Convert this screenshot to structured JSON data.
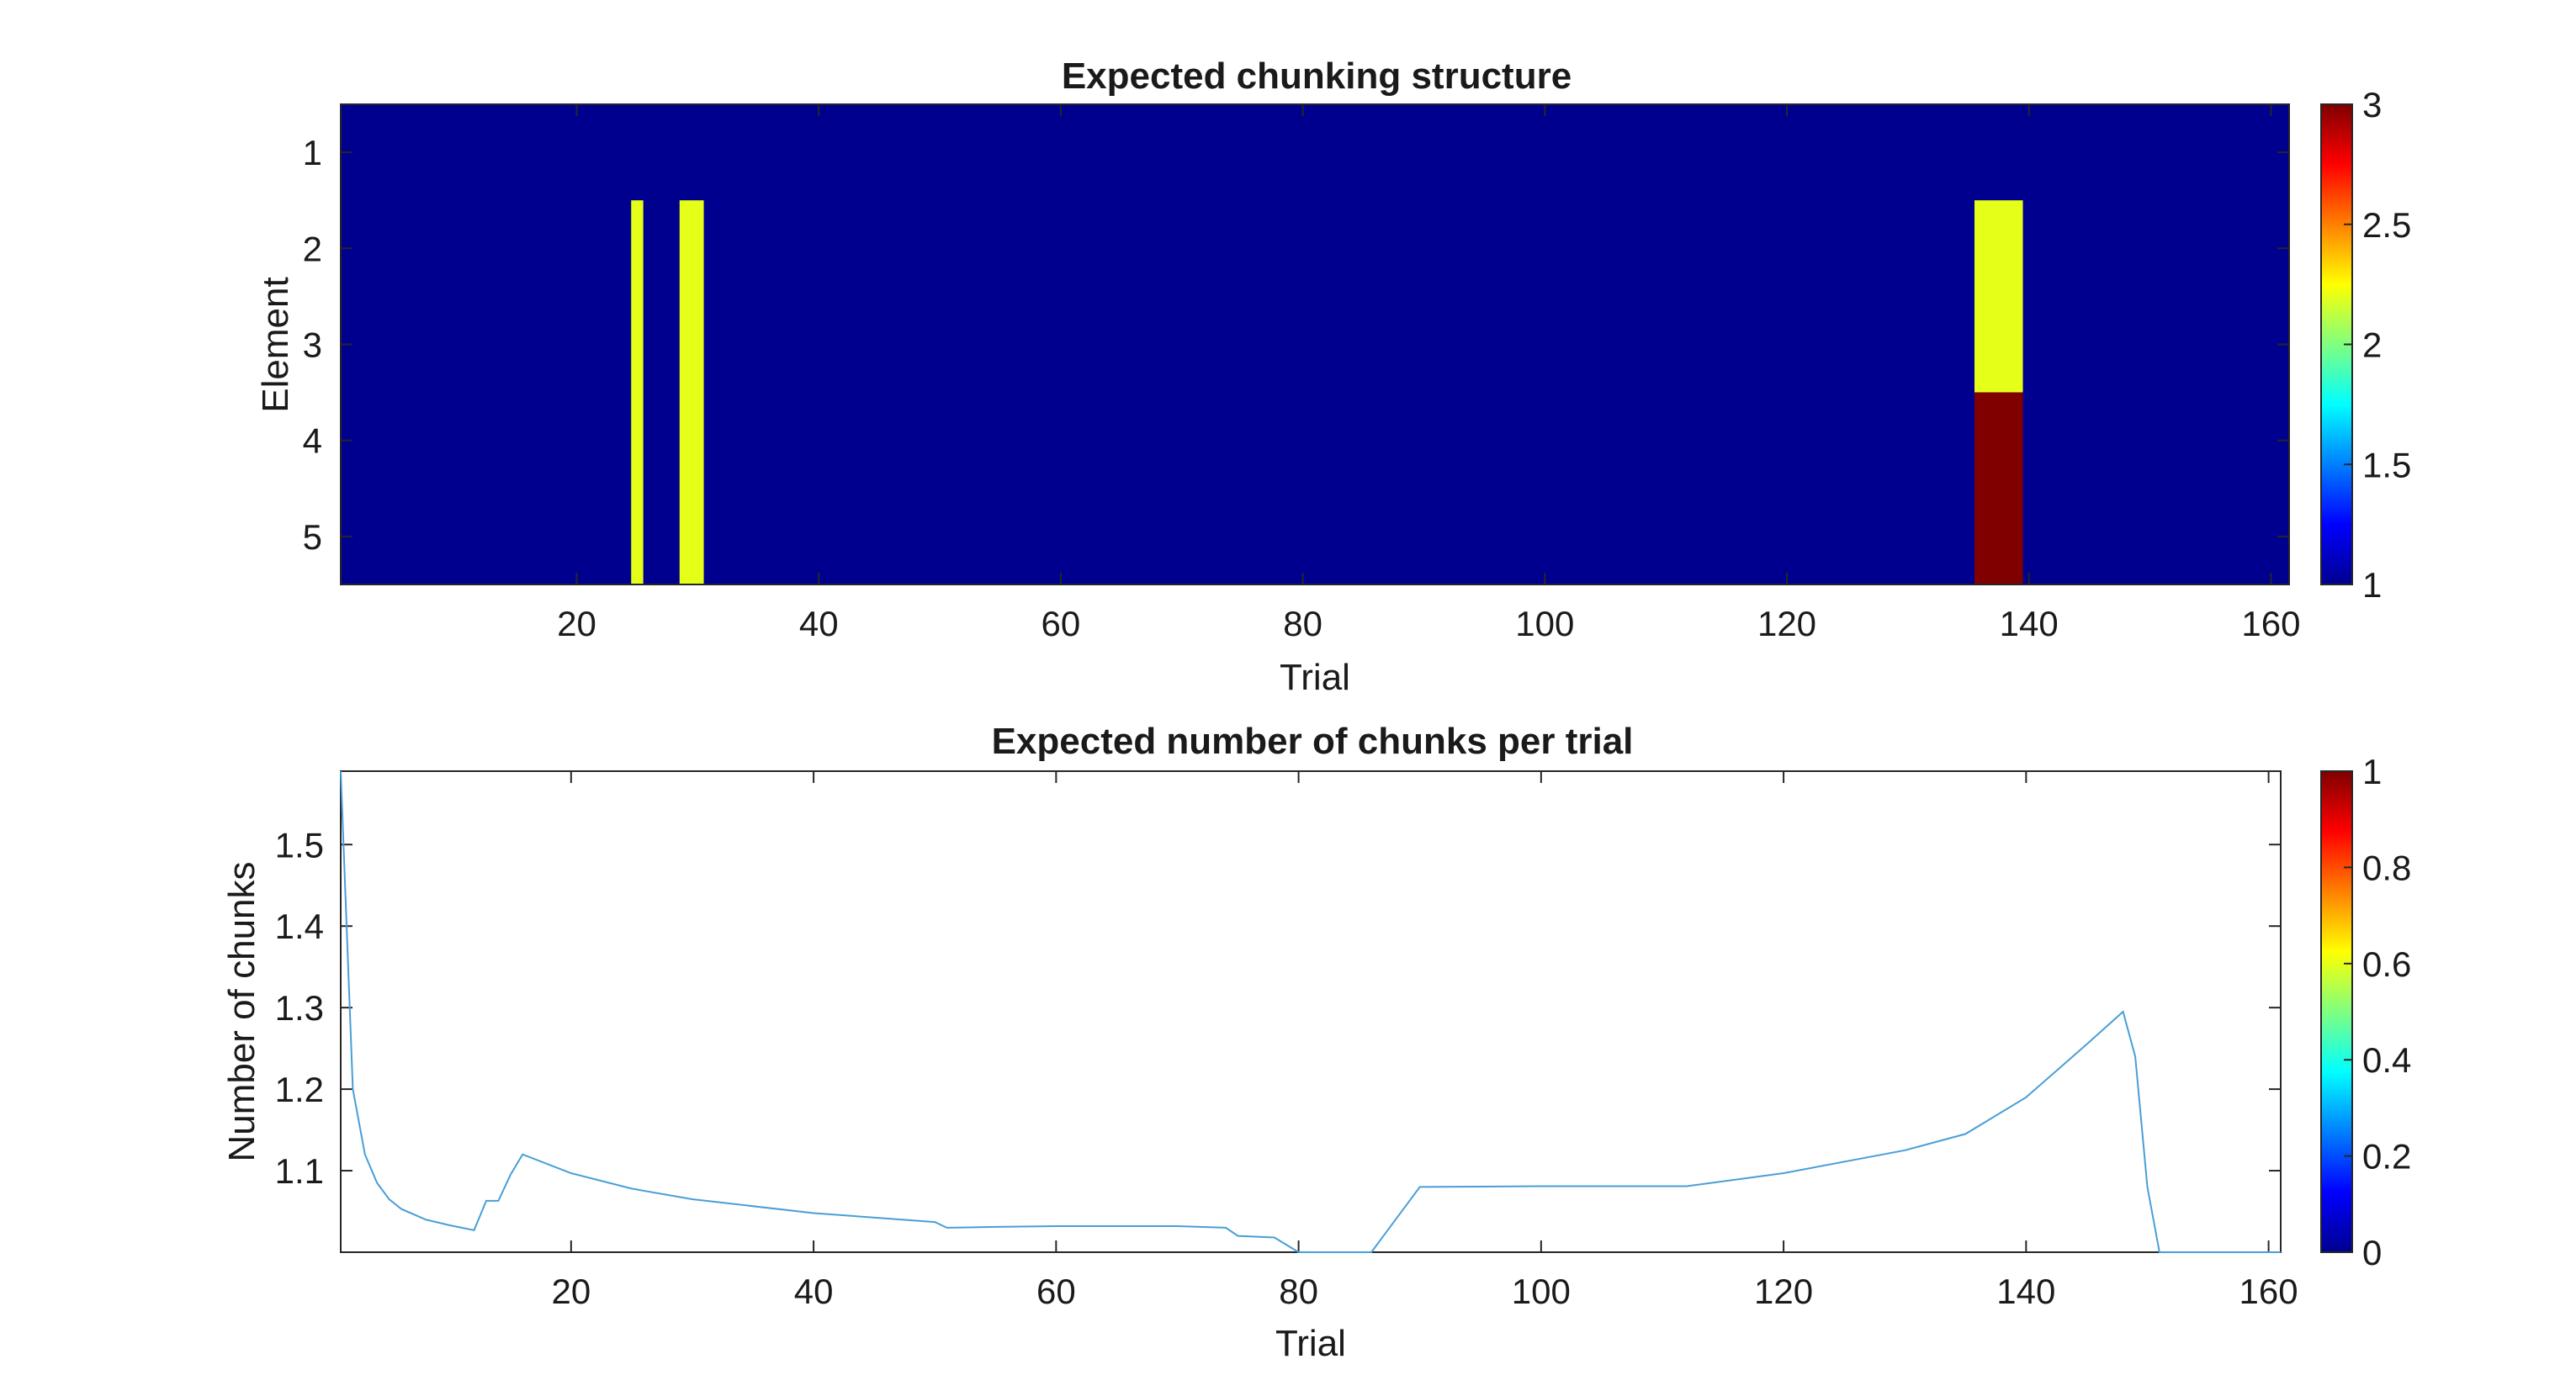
{
  "chart_data": [
    {
      "type": "heatmap",
      "title": "Expected chunking structure",
      "xlabel": "Trial",
      "ylabel": "Element",
      "xlim": [
        0.5,
        161.5
      ],
      "ylim": [
        0.5,
        5.5
      ],
      "y_reversed": true,
      "xticks": [
        20,
        40,
        60,
        80,
        100,
        120,
        140,
        160
      ],
      "yticks": [
        1,
        2,
        3,
        4,
        5
      ],
      "colormap": "jet",
      "clim": [
        1,
        3
      ],
      "colorbar_ticks": [
        1,
        1.5,
        2,
        2.5,
        3
      ],
      "background_value": 1,
      "cells": [
        {
          "trials": [
            25,
            25
          ],
          "elements": [
            2,
            5
          ],
          "value": 2.2
        },
        {
          "trials": [
            29,
            30
          ],
          "elements": [
            2,
            5
          ],
          "value": 2.2
        },
        {
          "trials": [
            136,
            139
          ],
          "elements": [
            2,
            3
          ],
          "value": 2.2
        },
        {
          "trials": [
            136,
            139
          ],
          "elements": [
            4,
            5
          ],
          "value": 3
        }
      ]
    },
    {
      "type": "line",
      "title": "Expected number of chunks per trial",
      "xlabel": "Trial",
      "ylabel": "Number of chunks",
      "xlim": [
        1,
        161
      ],
      "ylim": [
        1.0,
        1.59
      ],
      "xticks": [
        20,
        40,
        60,
        80,
        100,
        120,
        140,
        160
      ],
      "yticks": [
        1.1,
        1.2,
        1.3,
        1.4,
        1.5
      ],
      "colorbar_ticks": [
        0,
        0.2,
        0.4,
        0.6,
        0.8,
        1
      ],
      "clim": [
        0,
        1
      ],
      "line_color": "#4a9ed6",
      "x": [
        1,
        2,
        3,
        4,
        5,
        6,
        8,
        10,
        12,
        13,
        14,
        15,
        16,
        20,
        25,
        30,
        40,
        50,
        51,
        55,
        60,
        70,
        74,
        75,
        78,
        80,
        86,
        88,
        90,
        100,
        112,
        120,
        130,
        135,
        140,
        145,
        148,
        149,
        150,
        151,
        160,
        161
      ],
      "y": [
        1.59,
        1.2,
        1.12,
        1.085,
        1.065,
        1.053,
        1.04,
        1.033,
        1.027,
        1.063,
        1.063,
        1.095,
        1.12,
        1.097,
        1.078,
        1.065,
        1.048,
        1.037,
        1.03,
        1.031,
        1.032,
        1.032,
        1.03,
        1.02,
        1.018,
        1.0,
        1.0,
        1.04,
        1.08,
        1.081,
        1.081,
        1.097,
        1.125,
        1.145,
        1.19,
        1.255,
        1.295,
        1.24,
        1.08,
        1.0,
        1.0,
        1.0
      ]
    }
  ]
}
